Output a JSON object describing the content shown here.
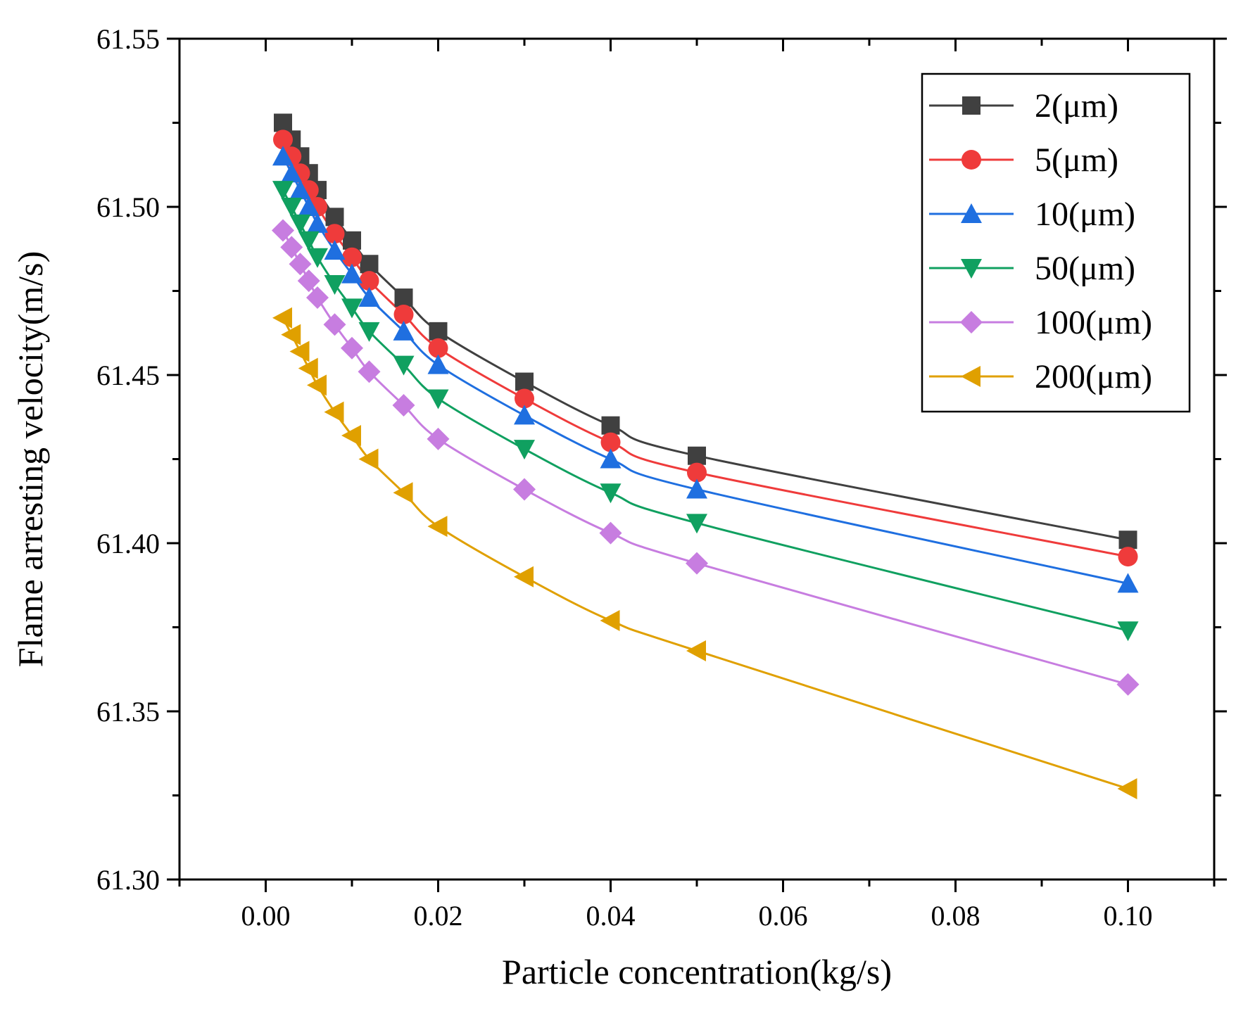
{
  "chart_data": {
    "type": "line",
    "xlabel": "Particle concentration(kg/s)",
    "ylabel": "Flame arresting velocity(m/s)",
    "xlim": [
      -0.01,
      0.11
    ],
    "ylim": [
      61.3,
      61.55
    ],
    "x_ticks": [
      "0.00",
      "0.02",
      "0.04",
      "0.06",
      "0.08",
      "0.10"
    ],
    "y_ticks": [
      "61.30",
      "61.35",
      "61.40",
      "61.45",
      "61.50",
      "61.55"
    ],
    "grid": false,
    "legend_position": "top-right",
    "x": [
      0.002,
      0.003,
      0.004,
      0.005,
      0.006,
      0.008,
      0.01,
      0.012,
      0.016,
      0.02,
      0.03,
      0.04,
      0.05,
      0.1
    ],
    "series": [
      {
        "name": "2(μm)",
        "color": "#404040",
        "marker": "square",
        "values": [
          61.525,
          61.52,
          61.515,
          61.51,
          61.505,
          61.497,
          61.49,
          61.483,
          61.473,
          61.463,
          61.448,
          61.435,
          61.426,
          61.401
        ]
      },
      {
        "name": "5(μm)",
        "color": "#ef3b3b",
        "marker": "circle",
        "values": [
          61.52,
          61.515,
          61.51,
          61.505,
          61.5,
          61.492,
          61.485,
          61.478,
          61.468,
          61.458,
          61.443,
          61.43,
          61.421,
          61.396
        ]
      },
      {
        "name": "10(μm)",
        "color": "#1f6fe0",
        "marker": "triangle-up",
        "values": [
          61.515,
          61.51,
          61.505,
          61.5,
          61.495,
          61.487,
          61.48,
          61.473,
          61.463,
          61.453,
          61.438,
          61.425,
          61.416,
          61.388
        ]
      },
      {
        "name": "50(μm)",
        "color": "#10a060",
        "marker": "triangle-down",
        "values": [
          61.505,
          61.5,
          61.495,
          61.49,
          61.485,
          61.477,
          61.47,
          61.463,
          61.453,
          61.443,
          61.428,
          61.415,
          61.406,
          61.374
        ]
      },
      {
        "name": "100(μm)",
        "color": "#c77de0",
        "marker": "diamond",
        "values": [
          61.493,
          61.488,
          61.483,
          61.478,
          61.473,
          61.465,
          61.458,
          61.451,
          61.441,
          61.431,
          61.416,
          61.403,
          61.394,
          61.358
        ]
      },
      {
        "name": "200(μm)",
        "color": "#e0a000",
        "marker": "triangle-left",
        "values": [
          61.467,
          61.462,
          61.457,
          61.452,
          61.447,
          61.439,
          61.432,
          61.425,
          61.415,
          61.405,
          61.39,
          61.377,
          61.368,
          61.327
        ]
      }
    ]
  }
}
